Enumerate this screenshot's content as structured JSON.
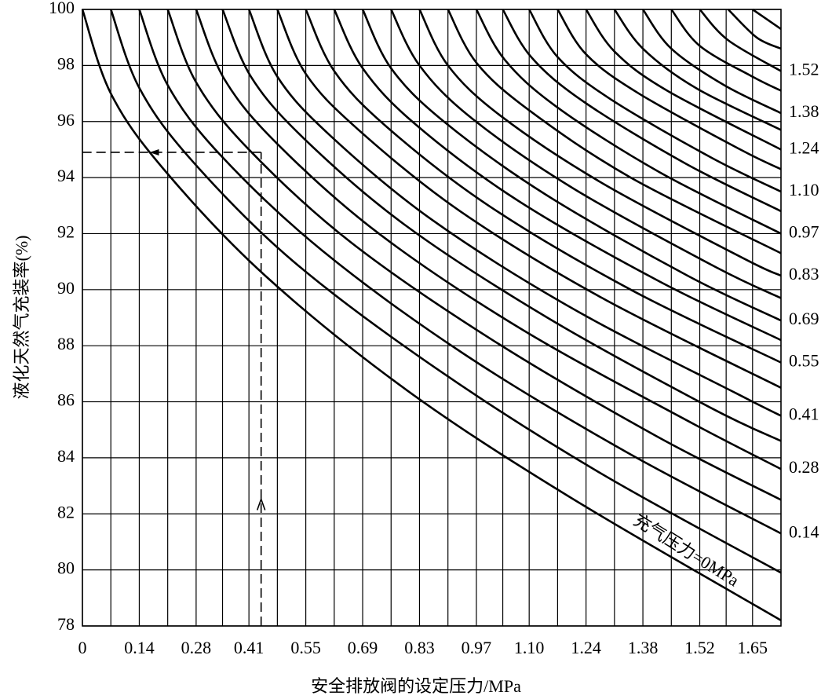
{
  "chart_data": {
    "type": "line",
    "x_label": "安全排放阀的设定压力/MPa",
    "y_label": "液化天然气充装率(%)",
    "xlim": [
      0,
      1.72
    ],
    "ylim": [
      78,
      100
    ],
    "xticks": [
      0,
      0.14,
      0.28,
      0.41,
      0.55,
      0.69,
      0.83,
      0.97,
      {
        "value": 1.1,
        "label": "1.10"
      },
      1.24,
      1.38,
      1.52,
      1.65
    ],
    "yticks": [
      78,
      80,
      82,
      84,
      86,
      88,
      90,
      92,
      94,
      96,
      98,
      100
    ],
    "grid": true,
    "color": "#000000",
    "guide": {
      "x": 0.44,
      "y": 94.9
    },
    "series": [
      {
        "name": "充气压力=0MPa",
        "x": [
          0,
          0.07,
          0.2,
          0.45,
          0.8,
          1.2,
          1.72
        ],
        "values": [
          100,
          97.0,
          94.3,
          90.5,
          86.4,
          82.6,
          78.2
        ]
      },
      {
        "x": [
          0.07,
          0.14,
          0.27,
          0.52,
          0.87,
          1.27,
          1.72
        ],
        "values": [
          100,
          97.2,
          94.6,
          91.0,
          87.2,
          83.5,
          79.9
        ]
      },
      {
        "name": "0.14",
        "x": [
          0.14,
          0.21,
          0.34,
          0.59,
          0.94,
          1.34,
          1.72
        ],
        "values": [
          100,
          97.3,
          94.8,
          91.4,
          87.7,
          84.2,
          81.3
        ]
      },
      {
        "x": [
          0.21,
          0.28,
          0.41,
          0.66,
          1.01,
          1.41,
          1.72
        ],
        "values": [
          100,
          97.4,
          95.0,
          91.7,
          88.2,
          84.8,
          82.5
        ]
      },
      {
        "name": "0.28",
        "x": [
          0.28,
          0.35,
          0.48,
          0.73,
          1.08,
          1.48,
          1.72
        ],
        "values": [
          100,
          97.5,
          95.2,
          92.0,
          88.6,
          85.4,
          83.6
        ]
      },
      {
        "x": [
          0.345,
          0.415,
          0.545,
          0.795,
          1.145,
          1.545,
          1.72
        ],
        "values": [
          100,
          97.6,
          95.4,
          92.3,
          89.0,
          85.8,
          84.6
        ]
      },
      {
        "name": "0.41",
        "x": [
          0.41,
          0.48,
          0.61,
          0.86,
          1.21,
          1.61,
          1.72
        ],
        "values": [
          100,
          97.6,
          95.5,
          92.5,
          89.3,
          86.3,
          85.5
        ]
      },
      {
        "x": [
          0.48,
          0.55,
          0.68,
          0.93,
          1.28,
          1.72
        ],
        "values": [
          100,
          97.7,
          95.7,
          92.8,
          89.7,
          86.5
        ]
      },
      {
        "name": "0.55",
        "x": [
          0.55,
          0.62,
          0.75,
          1.0,
          1.35,
          1.72
        ],
        "values": [
          100,
          97.8,
          95.8,
          93.0,
          90.0,
          87.4
        ]
      },
      {
        "x": [
          0.62,
          0.69,
          0.82,
          1.07,
          1.42,
          1.72
        ],
        "values": [
          100,
          97.9,
          95.9,
          93.2,
          90.3,
          88.2
        ]
      },
      {
        "name": "0.69",
        "x": [
          0.69,
          0.76,
          0.89,
          1.14,
          1.49,
          1.72
        ],
        "values": [
          100,
          97.9,
          96.0,
          93.4,
          90.5,
          88.9
        ]
      },
      {
        "x": [
          0.76,
          0.83,
          0.96,
          1.21,
          1.56,
          1.72
        ],
        "values": [
          100,
          98.0,
          96.1,
          93.6,
          90.8,
          89.7
        ]
      },
      {
        "name": "0.83",
        "x": [
          0.83,
          0.9,
          1.03,
          1.28,
          1.63,
          1.72
        ],
        "values": [
          100,
          98.0,
          96.2,
          93.8,
          91.1,
          90.5
        ]
      },
      {
        "x": [
          0.9,
          0.97,
          1.1,
          1.35,
          1.72
        ],
        "values": [
          100,
          98.1,
          96.4,
          94.0,
          91.3
        ]
      },
      {
        "name": "0.97",
        "x": [
          0.97,
          1.04,
          1.17,
          1.42,
          1.72
        ],
        "values": [
          100,
          98.2,
          96.5,
          94.2,
          92.0
        ]
      },
      {
        "x": [
          1.035,
          1.105,
          1.235,
          1.485,
          1.72
        ],
        "values": [
          100,
          98.3,
          96.7,
          94.5,
          92.8
        ]
      },
      {
        "name": "1.10",
        "x": [
          1.1,
          1.17,
          1.3,
          1.55,
          1.72
        ],
        "values": [
          100,
          98.3,
          96.8,
          94.7,
          93.5
        ]
      },
      {
        "x": [
          1.17,
          1.24,
          1.37,
          1.62,
          1.72
        ],
        "values": [
          100,
          98.4,
          97.0,
          95.0,
          94.3
        ]
      },
      {
        "name": "1.24",
        "x": [
          1.24,
          1.31,
          1.44,
          1.72
        ],
        "values": [
          100,
          98.5,
          97.1,
          95.0
        ]
      },
      {
        "x": [
          1.31,
          1.38,
          1.51,
          1.72
        ],
        "values": [
          100,
          98.6,
          97.2,
          95.7
        ]
      },
      {
        "name": "1.38",
        "x": [
          1.38,
          1.45,
          1.58,
          1.72
        ],
        "values": [
          100,
          98.6,
          97.3,
          96.3
        ]
      },
      {
        "x": [
          1.45,
          1.52,
          1.65,
          1.72
        ],
        "values": [
          100,
          98.7,
          97.6,
          97.1
        ]
      },
      {
        "name": "1.52",
        "x": [
          1.52,
          1.59,
          1.72
        ],
        "values": [
          100,
          98.9,
          97.8
        ]
      },
      {
        "x": [
          1.59,
          1.66,
          1.72
        ],
        "values": [
          100,
          99.0,
          98.6
        ]
      },
      {
        "x": [
          1.65,
          1.72
        ],
        "values": [
          100,
          99.3
        ]
      }
    ]
  }
}
